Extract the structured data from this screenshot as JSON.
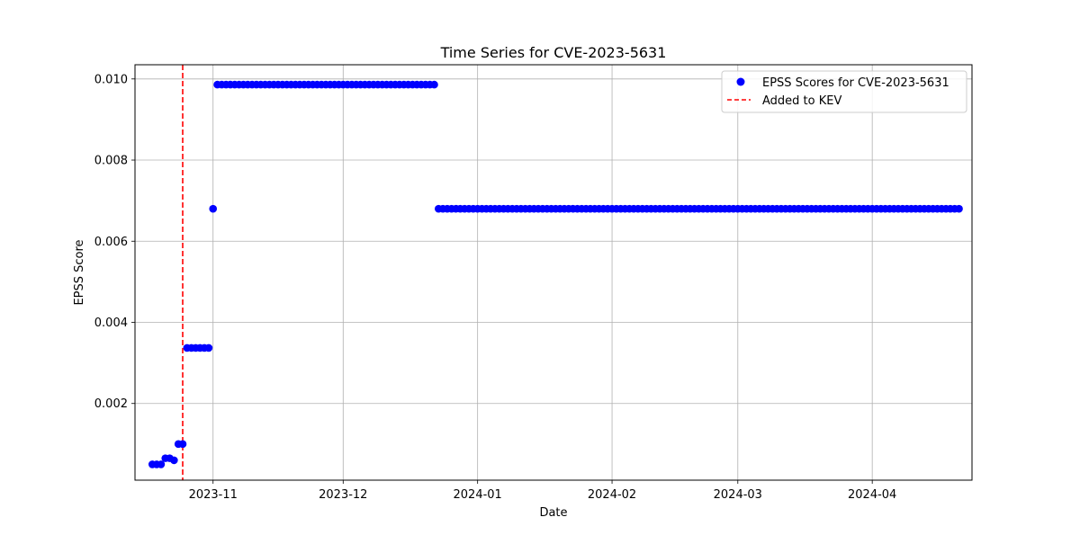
{
  "chart_data": {
    "type": "scatter",
    "title": "Time Series for CVE-2023-5631",
    "xlabel": "Date",
    "ylabel": "EPSS Score",
    "x_range": [
      "2023-10-14",
      "2024-04-24"
    ],
    "ylim": [
      0.00011,
      0.01035
    ],
    "x_ticks": [
      "2023-11-01",
      "2023-12-01",
      "2024-01-01",
      "2024-02-01",
      "2024-03-01",
      "2024-04-01"
    ],
    "x_tick_labels": [
      "2023-11",
      "2023-12",
      "2024-01",
      "2024-02",
      "2024-03",
      "2024-04"
    ],
    "y_ticks": [
      0.002,
      0.004,
      0.006,
      0.008,
      0.01
    ],
    "y_tick_labels": [
      "0.002",
      "0.004",
      "0.006",
      "0.008",
      "0.010"
    ],
    "grid": true,
    "legend_position": "top-right",
    "series": [
      {
        "name": "EPSS Scores for CVE-2023-5631",
        "color": "#0000ff",
        "marker": "circle",
        "segments": [
          {
            "start": "2023-10-18",
            "end": "2023-10-20",
            "value": 0.0005
          },
          {
            "start": "2023-10-21",
            "end": "2023-10-22",
            "value": 0.00065
          },
          {
            "start": "2023-10-23",
            "end": "2023-10-23",
            "value": 0.0006
          },
          {
            "start": "2023-10-24",
            "end": "2023-10-25",
            "value": 0.001
          },
          {
            "start": "2023-10-26",
            "end": "2023-10-31",
            "value": 0.00337
          },
          {
            "start": "2023-11-01",
            "end": "2023-11-01",
            "value": 0.0068
          },
          {
            "start": "2023-11-02",
            "end": "2023-12-22",
            "value": 0.00986
          },
          {
            "start": "2023-12-23",
            "end": "2024-04-21",
            "value": 0.0068
          }
        ]
      }
    ],
    "reference_lines": [
      {
        "name": "Added to KEV",
        "type": "vertical",
        "x": "2023-10-25",
        "color": "#ff0000",
        "style": "dashed"
      }
    ]
  }
}
